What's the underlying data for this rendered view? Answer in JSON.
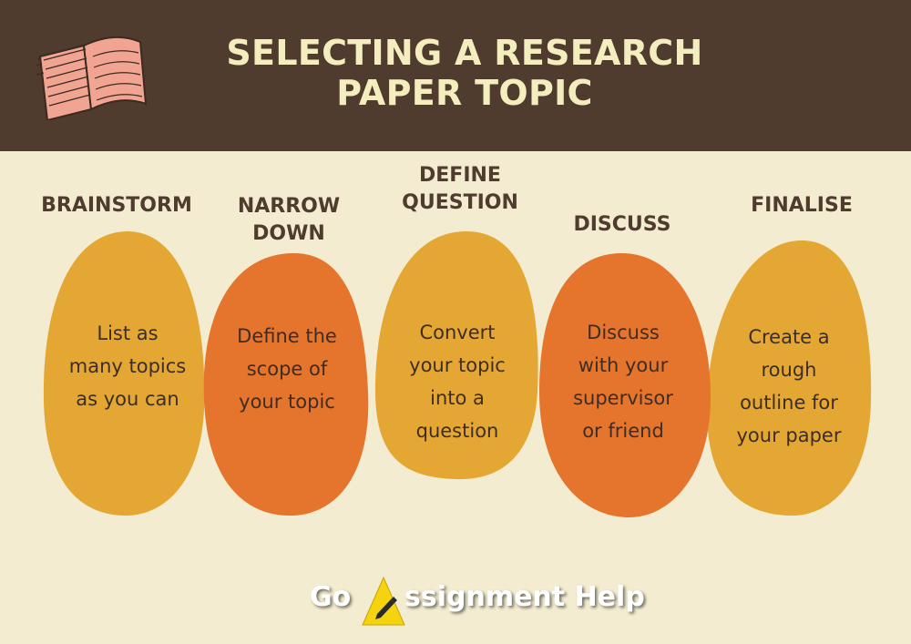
{
  "header": {
    "title_line1": "SELECTING A RESEARCH",
    "title_line2": "PAPER TOPIC"
  },
  "colors": {
    "header_bg": "#4f3c2e",
    "page_bg": "#f3ecd0",
    "title_text": "#f4eebf",
    "blob_yellow": "#e5a733",
    "blob_orange": "#e5742d",
    "book_pink": "#f0a491"
  },
  "steps": [
    {
      "title": [
        "BRAINSTORM"
      ],
      "text": [
        "List as",
        "many topics",
        "as you can"
      ],
      "color": "#e5a733"
    },
    {
      "title": [
        "NARROW",
        "DOWN"
      ],
      "text": [
        "Define the",
        "scope of",
        "your topic"
      ],
      "color": "#e5742d"
    },
    {
      "title": [
        "DEFINE",
        "QUESTION"
      ],
      "text": [
        "Convert",
        "your topic",
        "into a",
        "question"
      ],
      "color": "#e5a733"
    },
    {
      "title": [
        "DISCUSS"
      ],
      "text": [
        "Discuss",
        "with your",
        "supervisor",
        "or friend"
      ],
      "color": "#e5742d"
    },
    {
      "title": [
        "FINALISE"
      ],
      "text": [
        "Create a",
        "rough",
        "outline for",
        "your paper"
      ],
      "color": "#e5a733"
    }
  ],
  "brand": {
    "part1": "Go",
    "part2": "ssignment Help",
    "icon": "a-triangle-pen-logo"
  }
}
